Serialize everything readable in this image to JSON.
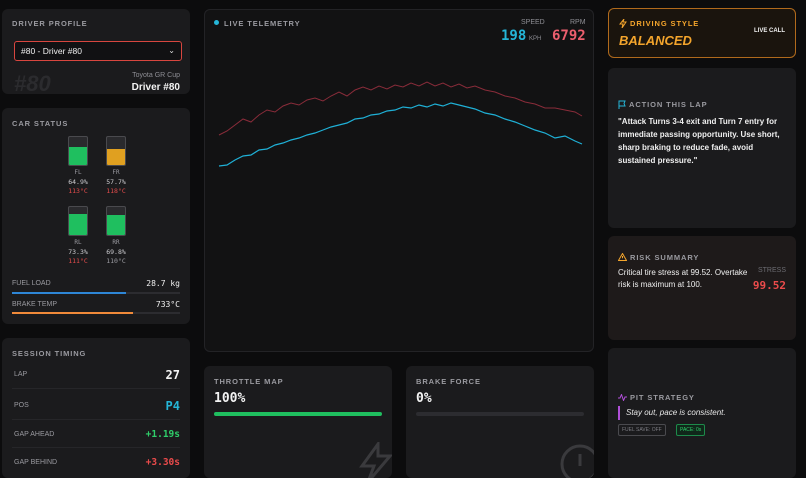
{
  "driver_profile": {
    "title": "DRIVER PROFILE",
    "selected_driver": "#80 - Driver #80",
    "car_number": "#80",
    "series": "Toyota GR Cup",
    "driver_name": "Driver #80"
  },
  "car_status": {
    "title": "CAR STATUS",
    "tires": [
      {
        "label": "FL",
        "wear": "64.9%",
        "wear_fraction": 0.649,
        "temp": "113°C",
        "temp_color": "#e04b4b",
        "fill_color": "#1fbf5f"
      },
      {
        "label": "FR",
        "wear": "57.7%",
        "wear_fraction": 0.577,
        "temp": "118°C",
        "temp_color": "#e04b4b",
        "fill_color": "#e0a020"
      },
      {
        "label": "RL",
        "wear": "73.3%",
        "wear_fraction": 0.733,
        "temp": "111°C",
        "temp_color": "#e04b4b",
        "fill_color": "#1fbf5f"
      },
      {
        "label": "RR",
        "wear": "69.8%",
        "wear_fraction": 0.698,
        "temp": "110°C",
        "temp_color": "#9a9aa0",
        "fill_color": "#1fbf5f"
      }
    ],
    "fuel_label": "FUEL LOAD",
    "fuel_value": "28.7 kg",
    "fuel_fraction": 0.68,
    "fuel_color": "#2e86d6",
    "brake_label": "BRAKE TEMP",
    "brake_value": "733°C",
    "brake_fraction": 0.72,
    "brake_color": "#f08a3a"
  },
  "session": {
    "title": "SESSION TIMING",
    "lap_label": "LAP",
    "lap_value": "27",
    "pos_label": "POS",
    "pos_value": "P4",
    "gap_ahead_label": "GAP AHEAD",
    "gap_ahead_value": "+1.19s",
    "gap_behind_label": "GAP BEHIND",
    "gap_behind_value": "+3.30s"
  },
  "telemetry": {
    "title": "LIVE TELEMETRY",
    "speed_label": "SPEED",
    "speed_value": "198",
    "speed_unit": "KPH",
    "rpm_label": "RPM",
    "rpm_value": "6792"
  },
  "throttle": {
    "title": "THROTTLE MAP",
    "value": "100%",
    "fraction": 1.0
  },
  "brake_force": {
    "title": "BRAKE FORCE",
    "value": "0%",
    "fraction": 0.0
  },
  "driving_style": {
    "title": "DRIVING STYLE",
    "badge": "LIVE CALL",
    "value": "BALANCED"
  },
  "action": {
    "title": "ACTION THIS LAP",
    "text": "\"Attack Turns 3-4 exit and Turn 7 entry for immediate passing opportunity. Use short, sharp braking to reduce fade, avoid sustained pressure.\""
  },
  "risk": {
    "title": "RISK SUMMARY",
    "text": "Critical tire stress at 99.52. Overtake risk is maximum at 100.",
    "stress_label": "STRESS",
    "stress_value": "99.52"
  },
  "pit": {
    "title": "PIT STRATEGY",
    "text": "Stay out, pace is consistent.",
    "chip_fuel": "FUEL SAVE: OFF",
    "chip_pace": "PACE: 0s"
  }
}
